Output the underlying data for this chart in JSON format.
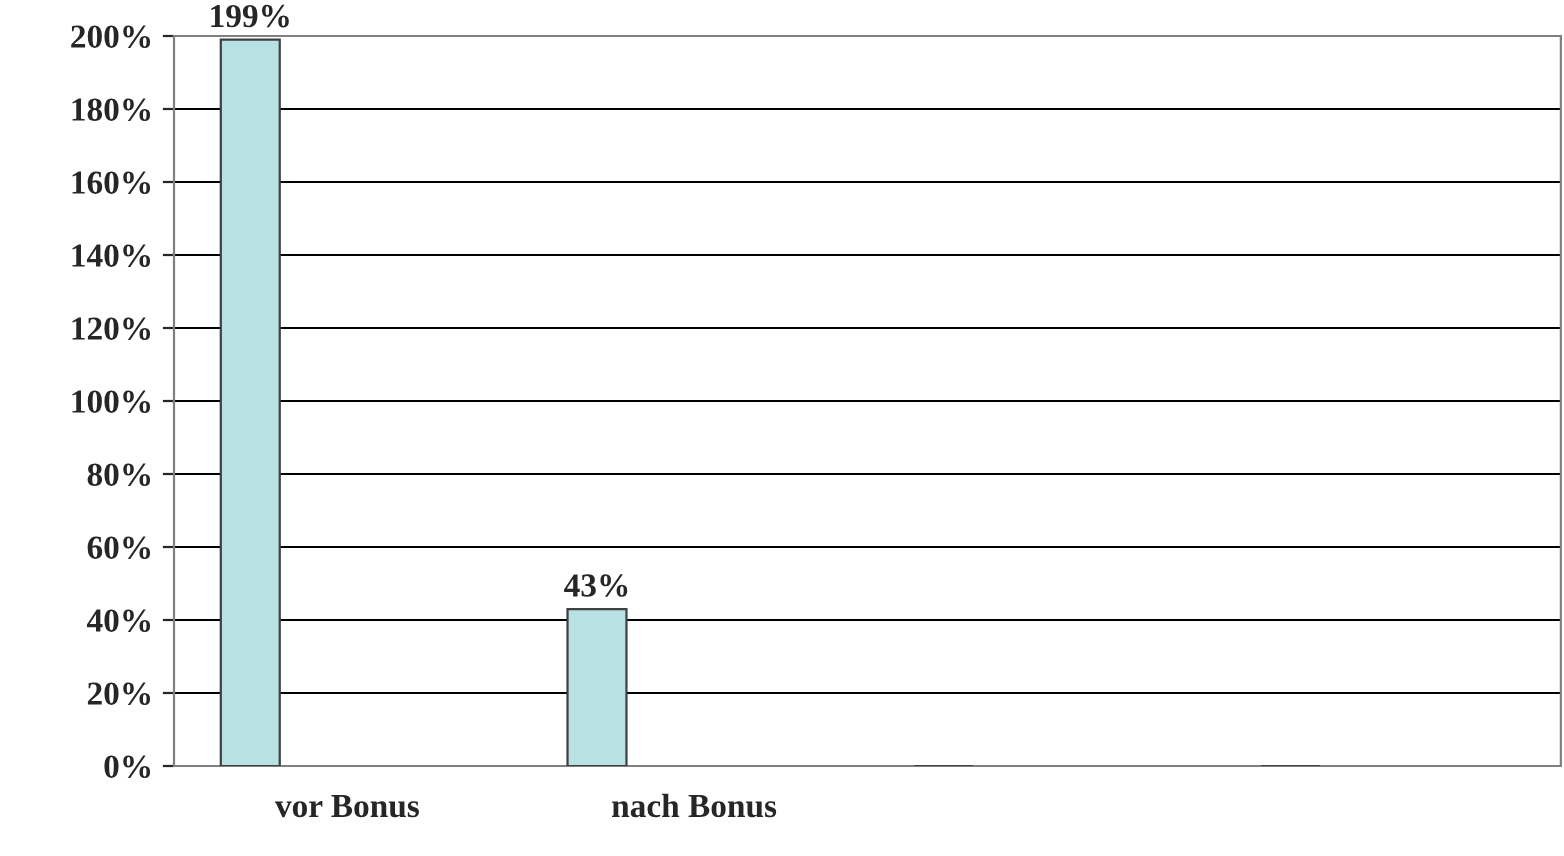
{
  "chart_data": {
    "type": "bar",
    "categories": [
      "vor Bonus",
      "nach Bonus",
      null,
      null
    ],
    "values": [
      199,
      43,
      null,
      null
    ],
    "value_labels": [
      "199%",
      "43%",
      null,
      null
    ],
    "color": "#b7e1e3",
    "ylim": [
      0,
      200
    ],
    "yticks": [
      {
        "value": 0,
        "label": "0%"
      },
      {
        "value": 20,
        "label": "20%"
      },
      {
        "value": 40,
        "label": "40%"
      },
      {
        "value": 60,
        "label": "60%"
      },
      {
        "value": 80,
        "label": "80%"
      },
      {
        "value": 100,
        "label": "100%"
      },
      {
        "value": 120,
        "label": "120%"
      },
      {
        "value": 140,
        "label": "140%"
      },
      {
        "value": 160,
        "label": "160%"
      },
      {
        "value": 180,
        "label": "180%"
      },
      {
        "value": 200,
        "label": "200%"
      }
    ],
    "grid": "y",
    "legend": false
  }
}
